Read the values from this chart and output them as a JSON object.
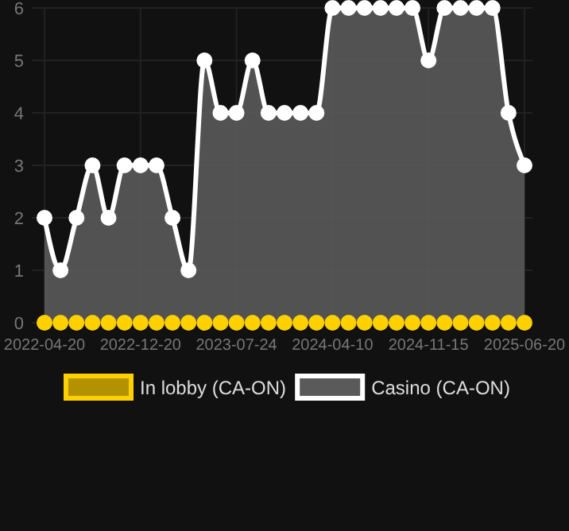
{
  "chart_data": {
    "type": "area",
    "categories": [
      "2022-04-20",
      null,
      null,
      null,
      null,
      null,
      "2022-12-20",
      null,
      null,
      null,
      null,
      null,
      "2023-07-24",
      null,
      null,
      null,
      null,
      null,
      "2024-04-10",
      null,
      null,
      null,
      null,
      null,
      "2024-11-15",
      null,
      null,
      null,
      null,
      null,
      "2025-06-20"
    ],
    "series": [
      {
        "name": "In lobby (CA-ON)",
        "color": "#ffd000",
        "type": "scatter",
        "values": [
          0,
          0,
          0,
          0,
          0,
          0,
          0,
          0,
          0,
          0,
          0,
          0,
          0,
          0,
          0,
          0,
          0,
          0,
          0,
          0,
          0,
          0,
          0,
          0,
          0,
          0,
          0,
          0,
          0,
          0,
          0
        ]
      },
      {
        "name": "Casino (CA-ON)",
        "color": "#ffffff",
        "values": [
          2,
          1,
          2,
          3,
          2,
          3,
          3,
          3,
          2,
          1,
          5,
          4,
          4,
          5,
          4,
          4,
          4,
          4,
          6,
          6,
          6,
          6,
          6,
          6,
          5,
          6,
          6,
          6,
          6,
          4,
          3
        ]
      }
    ],
    "ylim": [
      0,
      6
    ],
    "yticks": [
      0,
      1,
      2,
      3,
      4,
      5,
      6
    ],
    "grid": true,
    "legend": "bottom",
    "marker": "circle"
  }
}
